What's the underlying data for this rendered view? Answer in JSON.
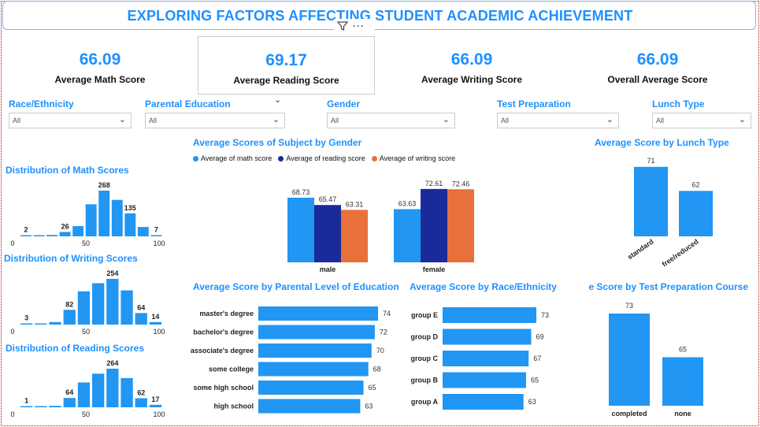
{
  "title": "EXPLORING FACTORS AFFECTING STUDENT ACADEMIC ACHIEVEMENT",
  "icons": {
    "filter": "filter-icon",
    "more": "more-options-icon"
  },
  "colors": {
    "accent": "#1e90ff",
    "math": "#2196f3",
    "reading": "#1a2b99",
    "writing": "#e8703a",
    "bar": "#2196f3"
  },
  "kpis": [
    {
      "value": "66.09",
      "label": "Average Math Score"
    },
    {
      "value": "69.17",
      "label": "Average Reading Score"
    },
    {
      "value": "66.09",
      "label": "Average Writing Score"
    },
    {
      "value": "66.09",
      "label": "Overall Average Score"
    }
  ],
  "slicers": [
    {
      "label": "Race/Ethnicity",
      "value": "All"
    },
    {
      "label": "Parental Education",
      "value": "All"
    },
    {
      "label": "Gender",
      "value": "All"
    },
    {
      "label": "Test Preparation",
      "value": "All"
    },
    {
      "label": "Lunch Type",
      "value": "All"
    }
  ],
  "chart_data": [
    {
      "id": "math_dist",
      "type": "bar",
      "title": "Distribution of Math Scores",
      "values": [
        2,
        1,
        8,
        26,
        60,
        188,
        268,
        214,
        135,
        55,
        7
      ],
      "data_labels": {
        "0": "2",
        "3": "26",
        "6": "268",
        "8": "135",
        "10": "7"
      },
      "ticks": [
        "0",
        "50",
        "100"
      ]
    },
    {
      "id": "writing_dist",
      "type": "bar",
      "title": "Distribution of Writing Scores",
      "values": [
        3,
        4,
        14,
        82,
        185,
        230,
        254,
        190,
        64,
        14
      ],
      "data_labels": {
        "0": "3",
        "3": "82",
        "6": "254",
        "8": "64",
        "9": "14"
      },
      "ticks": [
        "0",
        "50",
        "100"
      ]
    },
    {
      "id": "reading_dist",
      "type": "bar",
      "title": "Distribution of Reading Scores",
      "values": [
        1,
        3,
        10,
        64,
        170,
        230,
        264,
        200,
        62,
        17
      ],
      "data_labels": {
        "0": "1",
        "3": "64",
        "6": "264",
        "8": "62",
        "9": "17"
      },
      "ticks": [
        "0",
        "50",
        "100"
      ]
    },
    {
      "id": "gender",
      "type": "bar",
      "title": "Average Scores of Subject by Gender",
      "categories": [
        "male",
        "female"
      ],
      "series": [
        {
          "name": "Average of math score",
          "values": [
            68.73,
            63.63
          ],
          "labels": [
            "68.73",
            "63.63"
          ]
        },
        {
          "name": "Average of reading score",
          "values": [
            65.47,
            72.61
          ],
          "labels": [
            "65.47",
            "72.61"
          ]
        },
        {
          "name": "Average of writing score",
          "values": [
            63.31,
            72.46
          ],
          "labels": [
            "63.31",
            "72.46"
          ]
        }
      ],
      "legend": "top-left"
    },
    {
      "id": "lunch",
      "type": "bar",
      "title": "Average Score by Lunch Type",
      "categories": [
        "standard",
        "free/reduced"
      ],
      "values": [
        71,
        62
      ]
    },
    {
      "id": "parental",
      "type": "bar",
      "orientation": "horizontal",
      "title": "Average Score by Parental Level of Education",
      "categories": [
        "master's degree",
        "bachelor's degree",
        "associate's degree",
        "some college",
        "some high school",
        "high school"
      ],
      "values": [
        74,
        72,
        70,
        68,
        65,
        63
      ]
    },
    {
      "id": "race",
      "type": "bar",
      "orientation": "horizontal",
      "title": "Average Score by Race/Ethnicity",
      "categories": [
        "group E",
        "group D",
        "group C",
        "group B",
        "group A"
      ],
      "values": [
        73,
        69,
        67,
        65,
        63
      ]
    },
    {
      "id": "testprep",
      "type": "bar",
      "title": "e Score by Test Preparation Course",
      "categories": [
        "completed",
        "none"
      ],
      "values": [
        73,
        65
      ]
    }
  ]
}
